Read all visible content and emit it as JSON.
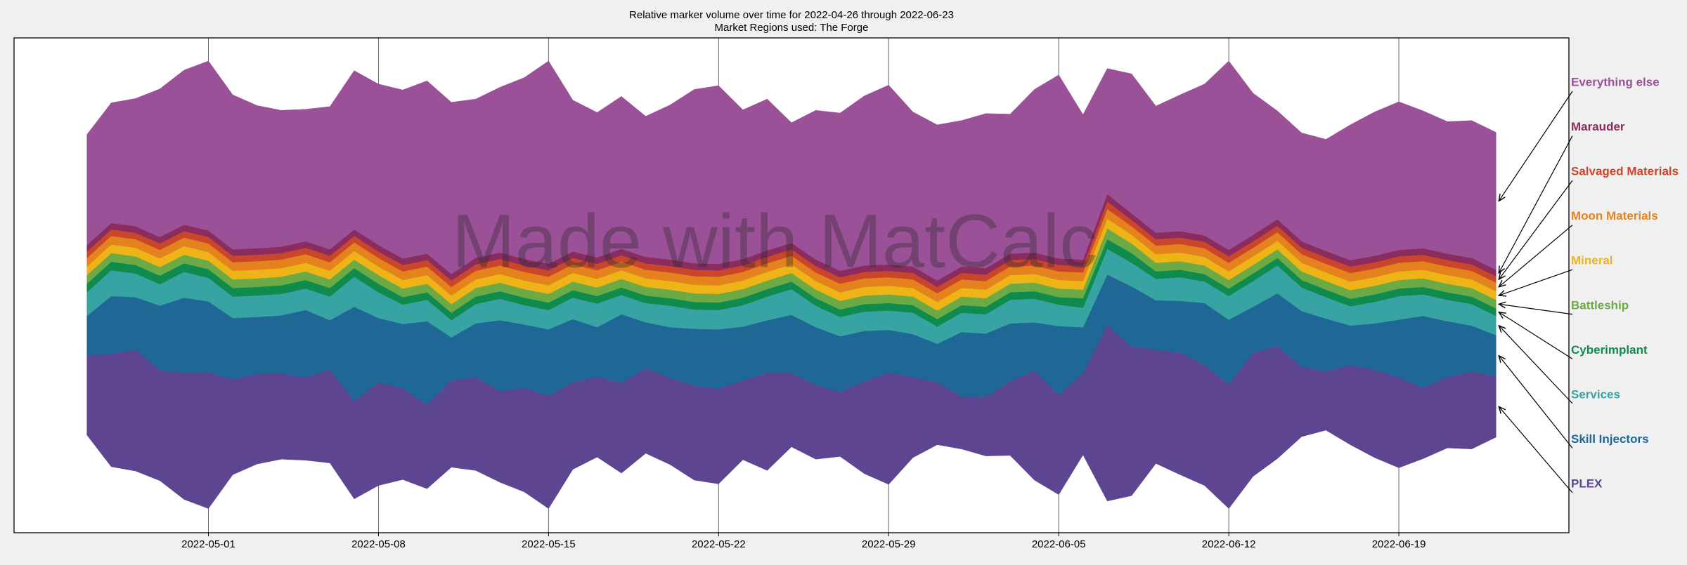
{
  "chart_data": {
    "type": "stream",
    "baseline": "symmetric",
    "title": "Relative marker volume over time for 2022-04-26 through 2022-06-23",
    "subtitle": "Market Regions used: The Forge",
    "watermark": "Made with MatCalc",
    "x": [
      "2022-04-26",
      "2022-04-27",
      "2022-04-28",
      "2022-04-29",
      "2022-04-30",
      "2022-05-01",
      "2022-05-02",
      "2022-05-03",
      "2022-05-04",
      "2022-05-05",
      "2022-05-06",
      "2022-05-07",
      "2022-05-08",
      "2022-05-09",
      "2022-05-10",
      "2022-05-11",
      "2022-05-12",
      "2022-05-13",
      "2022-05-14",
      "2022-05-15",
      "2022-05-16",
      "2022-05-17",
      "2022-05-18",
      "2022-05-19",
      "2022-05-20",
      "2022-05-21",
      "2022-05-22",
      "2022-05-23",
      "2022-05-24",
      "2022-05-25",
      "2022-05-26",
      "2022-05-27",
      "2022-05-28",
      "2022-05-29",
      "2022-05-30",
      "2022-05-31",
      "2022-06-01",
      "2022-06-02",
      "2022-06-03",
      "2022-06-04",
      "2022-06-05",
      "2022-06-06",
      "2022-06-07",
      "2022-06-08",
      "2022-06-09",
      "2022-06-10",
      "2022-06-11",
      "2022-06-12",
      "2022-06-13",
      "2022-06-14",
      "2022-06-15",
      "2022-06-16",
      "2022-06-17",
      "2022-06-18",
      "2022-06-19",
      "2022-06-20",
      "2022-06-21",
      "2022-06-22",
      "2022-06-23"
    ],
    "xlim": [
      "2022-04-23",
      "2022-06-26"
    ],
    "xticks": [
      "2022-05-01",
      "2022-05-08",
      "2022-05-15",
      "2022-05-22",
      "2022-05-29",
      "2022-06-05",
      "2022-06-12",
      "2022-06-19"
    ],
    "ylim": [
      -231,
      230
    ],
    "grid": true,
    "legend": "right",
    "series": [
      {
        "name": "PLEX",
        "color": "#5e4591",
        "values": [
          74,
          105,
          113,
          103,
          118,
          127,
          89,
          84,
          80,
          77,
          87,
          91,
          96,
          85,
          78,
          81,
          87,
          85,
          97,
          105,
          81,
          75,
          84,
          79,
          81,
          88,
          89,
          74,
          91,
          69,
          69,
          60,
          86,
          104,
          75,
          58,
          49,
          55,
          69,
          102,
          93,
          76,
          164,
          139,
          106,
          114,
          112,
          116,
          115,
          105,
          65,
          55,
          74,
          82,
          84,
          66,
          66,
          72,
          57
        ]
      },
      {
        "name": "Skill Injectors",
        "color": "#1f6896",
        "values": [
          37,
          54,
          49,
          60,
          70,
          66,
          57,
          53,
          54,
          63,
          46,
          88,
          60,
          60,
          78,
          40,
          50,
          66,
          59,
          62,
          59,
          46,
          64,
          43,
          47,
          53,
          55,
          50,
          49,
          54,
          54,
          52,
          47,
          40,
          40,
          36,
          60,
          59,
          54,
          45,
          64,
          43,
          47,
          56,
          46,
          48,
          58,
          60,
          43,
          49,
          52,
          49,
          37,
          43,
          54,
          67,
          52,
          43,
          38
        ]
      },
      {
        "name": "Services",
        "color": "#38a3a3",
        "values": [
          22,
          24,
          22,
          20,
          24,
          22,
          20,
          20,
          20,
          20,
          22,
          28,
          24,
          18,
          20,
          16,
          18,
          20,
          18,
          18,
          20,
          22,
          18,
          18,
          20,
          18,
          18,
          20,
          22,
          24,
          20,
          18,
          18,
          18,
          20,
          16,
          18,
          18,
          22,
          22,
          20,
          18,
          24,
          22,
          20,
          22,
          20,
          22,
          24,
          26,
          22,
          20,
          18,
          20,
          22,
          20,
          20,
          20,
          18
        ]
      },
      {
        "name": "Cyberimplant",
        "color": "#0f8b4e",
        "values": [
          8,
          8,
          8,
          8,
          8,
          8,
          8,
          8,
          8,
          8,
          8,
          8,
          8,
          7,
          7,
          7,
          7,
          7,
          7,
          7,
          7,
          7,
          7,
          7,
          7,
          7,
          7,
          7,
          7,
          7,
          7,
          7,
          7,
          7,
          7,
          7,
          7,
          7,
          7,
          7,
          7,
          9,
          9,
          9,
          7,
          7,
          7,
          7,
          7,
          7,
          7,
          7,
          7,
          7,
          7,
          7,
          7,
          7,
          7
        ]
      },
      {
        "name": "Battleship",
        "color": "#6caa46",
        "values": [
          8,
          8,
          8,
          8,
          8,
          8,
          8,
          8,
          8,
          8,
          8,
          8,
          8,
          8,
          8,
          8,
          8,
          8,
          8,
          8,
          8,
          8,
          8,
          8,
          8,
          8,
          8,
          8,
          8,
          8,
          8,
          8,
          8,
          8,
          8,
          8,
          8,
          8,
          8,
          8,
          8,
          8,
          10,
          9,
          8,
          8,
          8,
          8,
          8,
          8,
          8,
          8,
          8,
          8,
          8,
          8,
          8,
          8,
          8
        ]
      },
      {
        "name": "Mineral",
        "color": "#eeb417",
        "values": [
          8,
          8,
          8,
          8,
          8,
          8,
          8,
          8,
          8,
          8,
          8,
          8,
          8,
          8,
          8,
          8,
          8,
          8,
          8,
          8,
          8,
          8,
          8,
          8,
          8,
          8,
          8,
          8,
          8,
          8,
          8,
          8,
          8,
          8,
          8,
          8,
          8,
          8,
          8,
          8,
          8,
          8,
          9,
          8,
          8,
          8,
          8,
          8,
          8,
          8,
          8,
          8,
          8,
          8,
          8,
          8,
          8,
          8,
          8
        ]
      },
      {
        "name": "Moon Materials",
        "color": "#e4821d",
        "values": [
          8,
          8,
          8,
          8,
          8,
          8,
          8,
          8,
          8,
          8,
          8,
          8,
          8,
          8,
          8,
          8,
          8,
          8,
          8,
          8,
          8,
          8,
          8,
          8,
          8,
          8,
          8,
          8,
          8,
          8,
          8,
          8,
          8,
          8,
          8,
          8,
          8,
          8,
          8,
          8,
          8,
          8,
          9,
          8,
          8,
          8,
          8,
          8,
          8,
          8,
          8,
          8,
          8,
          8,
          8,
          8,
          8,
          8,
          8
        ]
      },
      {
        "name": "Salvaged Materials",
        "color": "#c9462b",
        "values": [
          6,
          6,
          6,
          6,
          6,
          6,
          6,
          6,
          6,
          6,
          6,
          6,
          6,
          6,
          6,
          6,
          6,
          6,
          6,
          6,
          6,
          6,
          6,
          6,
          6,
          6,
          6,
          6,
          6,
          6,
          6,
          6,
          6,
          6,
          6,
          6,
          6,
          6,
          6,
          6,
          6,
          6,
          7,
          6,
          6,
          6,
          6,
          6,
          6,
          6,
          6,
          6,
          6,
          6,
          6,
          6,
          6,
          6,
          6
        ]
      },
      {
        "name": "Marauder",
        "color": "#8a2d5e",
        "values": [
          6,
          6,
          6,
          6,
          6,
          6,
          6,
          6,
          6,
          6,
          6,
          6,
          6,
          6,
          6,
          6,
          6,
          6,
          6,
          6,
          6,
          6,
          6,
          6,
          6,
          6,
          6,
          6,
          6,
          6,
          6,
          6,
          6,
          6,
          6,
          6,
          6,
          6,
          6,
          6,
          6,
          6,
          7,
          6,
          6,
          6,
          6,
          6,
          6,
          6,
          6,
          6,
          6,
          6,
          6,
          6,
          6,
          6,
          6
        ]
      },
      {
        "name": "Everything else",
        "color": "#9b5198",
        "values": [
          103,
          112,
          119,
          138,
          144,
          158,
          144,
          133,
          127,
          123,
          133,
          148,
          150,
          157,
          161,
          160,
          148,
          154,
          169,
          189,
          141,
          135,
          142,
          131,
          144,
          162,
          166,
          139,
          141,
          112,
          139,
          147,
          158,
          167,
          144,
          145,
          136,
          144,
          130,
          152,
          171,
          135,
          117,
          130,
          118,
          127,
          141,
          176,
          132,
          101,
          101,
          104,
          126,
          134,
          138,
          128,
          123,
          128,
          128
        ]
      }
    ]
  }
}
